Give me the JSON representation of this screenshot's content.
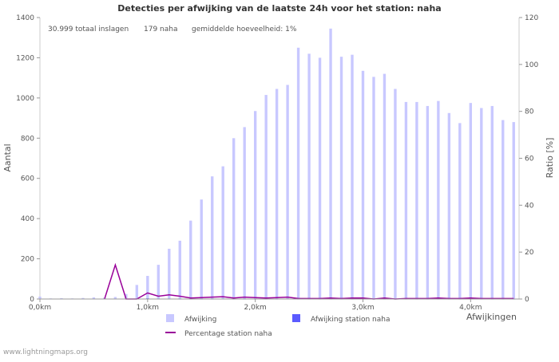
{
  "chart_data": {
    "type": "bar",
    "title": "Detecties per afwijking van de laatste 24h voor het station: naha",
    "summary": {
      "total": "30.999 totaal inslagen",
      "station": "179 naha",
      "average": "gemiddelde hoeveelheid: 1%"
    },
    "ylabel_left": "Aantal",
    "ylabel_right": "Ratio [%]",
    "xlabel": "Afwijkingen",
    "ylim_left": [
      0,
      1400
    ],
    "ylim_right": [
      0,
      120
    ],
    "xlim": [
      0,
      4.45
    ],
    "yticks_left": [
      0,
      200,
      400,
      600,
      800,
      1000,
      1200,
      1400
    ],
    "yticks_right": [
      0,
      20,
      40,
      60,
      80,
      100,
      120
    ],
    "xticks": [
      {
        "value": 0,
        "label": "0,0km"
      },
      {
        "value": 1,
        "label": "1,0km"
      },
      {
        "value": 2,
        "label": "2,0km"
      },
      {
        "value": 3,
        "label": "3,0km"
      },
      {
        "value": 4,
        "label": "4,0km"
      }
    ],
    "bin_width_km": 0.1,
    "categories": [
      0.0,
      0.1,
      0.2,
      0.3,
      0.4,
      0.5,
      0.6,
      0.7,
      0.8,
      0.9,
      1.0,
      1.1,
      1.2,
      1.3,
      1.4,
      1.5,
      1.6,
      1.7,
      1.8,
      1.9,
      2.0,
      2.1,
      2.2,
      2.3,
      2.4,
      2.5,
      2.6,
      2.7,
      2.8,
      2.9,
      3.0,
      3.1,
      3.2,
      3.3,
      3.4,
      3.5,
      3.6,
      3.7,
      3.8,
      3.9,
      4.0,
      4.1,
      4.2,
      4.3,
      4.4
    ],
    "series": [
      {
        "name": "Afwijking",
        "color": "#c8c8ff",
        "values": [
          12,
          3,
          4,
          3,
          5,
          8,
          7,
          10,
          25,
          70,
          115,
          170,
          250,
          290,
          390,
          495,
          610,
          660,
          800,
          855,
          935,
          1015,
          1045,
          1065,
          1250,
          1220,
          1200,
          1345,
          1205,
          1215,
          1135,
          1105,
          1120,
          1045,
          980,
          980,
          960,
          985,
          925,
          875,
          975,
          950,
          960,
          890,
          880
        ]
      },
      {
        "name": "Afwijking station naha",
        "color": "#5b5bff",
        "values": [
          0,
          0,
          0,
          0,
          0,
          0,
          0,
          2,
          0,
          0,
          3,
          2,
          2,
          1,
          1,
          1,
          1,
          2,
          1,
          1,
          1,
          1,
          1,
          2,
          1,
          1,
          1,
          1,
          1,
          1,
          1,
          1,
          1,
          1,
          1,
          1,
          1,
          1,
          1,
          1,
          1,
          1,
          1,
          1,
          1
        ]
      },
      {
        "name": "Percentage station naha",
        "color": "#990099",
        "axis": "right",
        "values": [
          null,
          null,
          null,
          null,
          null,
          null,
          0,
          14.5,
          0,
          0,
          2.6,
          1.2,
          1.8,
          1.2,
          0.4,
          0.6,
          0.8,
          1.0,
          0.4,
          0.8,
          0.6,
          0.4,
          0.6,
          0.8,
          0.2,
          0.2,
          0.2,
          0.4,
          0.2,
          0.4,
          0.4,
          0,
          0.4,
          0,
          0.2,
          0.2,
          0.2,
          0.4,
          0.2,
          0.2,
          0.4,
          0.2,
          0.2,
          0.2,
          0.2
        ]
      }
    ],
    "legend": [
      {
        "label": "Afwijking",
        "kind": "swatch",
        "color": "#c8c8ff"
      },
      {
        "label": "Afwijking station naha",
        "kind": "swatch",
        "color": "#5b5bff"
      },
      {
        "label": "Percentage station naha",
        "kind": "line",
        "color": "#990099"
      }
    ],
    "legend_position": "bottom"
  },
  "footer": "www.lightningmaps.org"
}
